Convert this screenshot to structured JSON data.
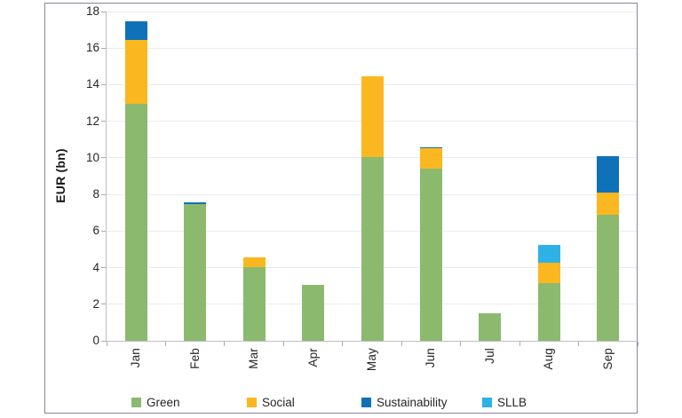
{
  "chart_data": {
    "type": "bar",
    "stacked": true,
    "title": "",
    "xlabel": "",
    "ylabel": "EUR (bn)",
    "ylim": [
      0,
      18
    ],
    "ytick_step": 2,
    "yticks": [
      0,
      2,
      4,
      6,
      8,
      10,
      12,
      14,
      16,
      18
    ],
    "grid": "horizontal",
    "legend_position": "bottom",
    "categories": [
      "Jan",
      "Feb",
      "Mar",
      "Apr",
      "May",
      "Jun",
      "Jul",
      "Aug",
      "Sep"
    ],
    "series": [
      {
        "name": "Green",
        "color": "#8BB96E",
        "values": [
          12.95,
          7.45,
          4.05,
          3.05,
          10.05,
          9.4,
          1.5,
          3.15,
          6.9
        ]
      },
      {
        "name": "Social",
        "color": "#FBB71F",
        "values": [
          3.5,
          0,
          0.5,
          0,
          4.4,
          1.15,
          0,
          1.1,
          1.2
        ]
      },
      {
        "name": "Sustainability",
        "color": "#0F71B8",
        "values": [
          1.0,
          0.1,
          0,
          0,
          0,
          0.05,
          0,
          0,
          2.0
        ]
      },
      {
        "name": "SLLB",
        "color": "#2EB2E6",
        "values": [
          0,
          0,
          0,
          0,
          0,
          0,
          0,
          1.0,
          0
        ]
      }
    ],
    "totals": [
      17.45,
      7.55,
      4.55,
      3.05,
      14.45,
      10.6,
      1.5,
      5.25,
      10.1
    ]
  },
  "styles": {
    "panel_border_color": "#8C80A0",
    "grid_color": "#EBEBEB",
    "axis_color": "#BFBFBF",
    "tick_color": "#ABABAB",
    "text_color": "#262626",
    "background": "#FFFFFF"
  }
}
